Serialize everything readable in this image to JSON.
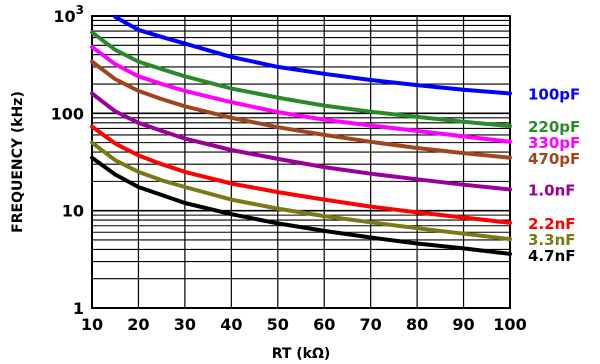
{
  "chart_data": {
    "type": "line",
    "xlabel": "RT (kΩ)",
    "ylabel": "FREQUENCY (kHz)",
    "xlim": [
      10,
      100
    ],
    "ylim": [
      1,
      1000
    ],
    "yscale": "log",
    "grid": true,
    "legend_placement": "right",
    "x_ticks": [
      "10",
      "20",
      "30",
      "40",
      "50",
      "60",
      "70",
      "80",
      "90",
      "100"
    ],
    "y_ticks": [
      {
        "value": 1,
        "base": "1",
        "exp": ""
      },
      {
        "value": 10,
        "base": "10",
        "exp": ""
      },
      {
        "value": 100,
        "base": "100",
        "exp": ""
      },
      {
        "value": 1000,
        "base": "10",
        "exp": "3"
      }
    ],
    "x": [
      10,
      15,
      20,
      25,
      30,
      40,
      50,
      60,
      70,
      80,
      90,
      100
    ],
    "series": [
      {
        "name": "100pF",
        "color": "#0000ff",
        "values": [
          null,
          980,
          720,
          610,
          520,
          380,
          300,
          255,
          220,
          195,
          175,
          160
        ]
      },
      {
        "name": "220pF",
        "color": "#2a8a2a",
        "values": [
          680,
          450,
          340,
          285,
          240,
          180,
          145,
          120,
          104,
          92,
          82,
          74
        ]
      },
      {
        "name": "330pF",
        "color": "#ff00ff",
        "values": [
          480,
          320,
          240,
          200,
          170,
          130,
          103,
          86,
          75,
          66,
          58,
          51
        ]
      },
      {
        "name": "470pF",
        "color": "#a0461e",
        "values": [
          340,
          225,
          170,
          140,
          118,
          90,
          72,
          60,
          51,
          44,
          39,
          35
        ]
      },
      {
        "name": "1.0nF",
        "color": "#990099",
        "values": [
          160,
          105,
          80,
          66,
          55,
          42,
          34,
          28,
          24,
          21,
          18.5,
          16.5
        ]
      },
      {
        "name": "2.2nF",
        "color": "#ff0000",
        "values": [
          73,
          49,
          37,
          30,
          25,
          19,
          15.5,
          13,
          11,
          9.6,
          8.5,
          7.5
        ]
      },
      {
        "name": "3.3nF",
        "color": "#7a7a14",
        "values": [
          50,
          33,
          25,
          20.5,
          17.5,
          13,
          10.5,
          8.8,
          7.6,
          6.6,
          5.8,
          5.1
        ]
      },
      {
        "name": "4.7nF",
        "color": "#000000",
        "values": [
          35,
          23.5,
          17.5,
          14.5,
          12,
          9.2,
          7.4,
          6.2,
          5.3,
          4.6,
          4.1,
          3.6
        ]
      }
    ]
  }
}
